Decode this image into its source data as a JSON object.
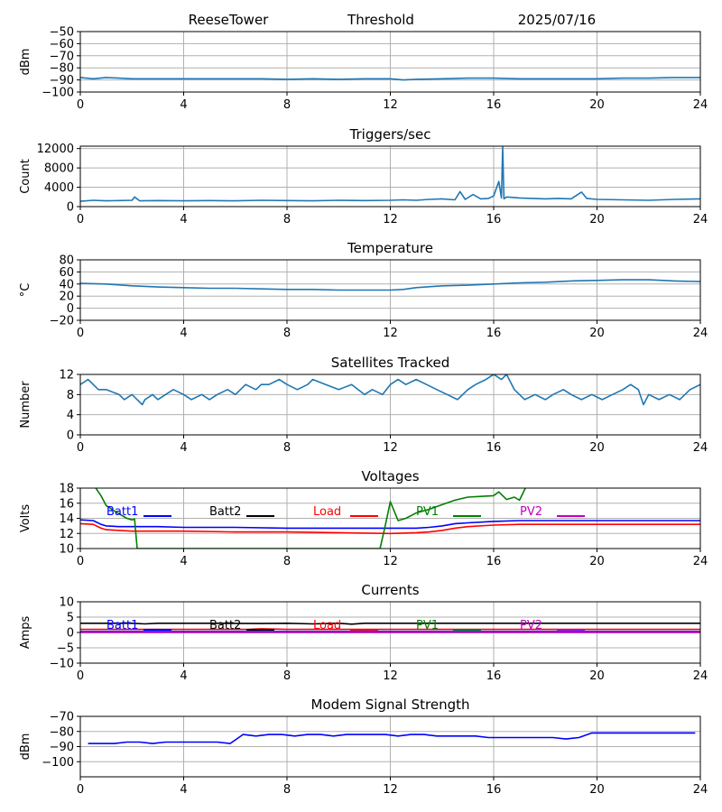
{
  "header": {
    "station": "ReeseTower",
    "mode": "Threshold",
    "date": "2025/07/16"
  },
  "colors": {
    "series_default": "#1f77b4",
    "batt1": "#0000ff",
    "batt2": "#000000",
    "load": "#ff0000",
    "pv1": "#008000",
    "pv2": "#bf00bf",
    "grid": "#b0b0b0"
  },
  "chart_data": [
    {
      "id": "signal",
      "type": "line",
      "title": "",
      "xlabel": "",
      "ylabel": "dBm",
      "xlim": [
        0,
        24
      ],
      "ylim": [
        -100,
        -50
      ],
      "xticks": [
        0,
        4,
        8,
        12,
        16,
        20,
        24
      ],
      "yticks": [
        -100,
        -90,
        -80,
        -70,
        -60,
        -50
      ],
      "grid": true,
      "series": [
        {
          "name": "",
          "color": "#1f77b4",
          "x": [
            0,
            0.5,
            1,
            2,
            3,
            4,
            5,
            6,
            7,
            8,
            9,
            10,
            11,
            12,
            12.5,
            13,
            14,
            15,
            16,
            17,
            18,
            19,
            20,
            21,
            22,
            23,
            24
          ],
          "y": [
            -88,
            -89,
            -88,
            -89,
            -89,
            -89,
            -89,
            -89,
            -89,
            -89.5,
            -89,
            -89.5,
            -89,
            -89,
            -90,
            -89.5,
            -89,
            -88.5,
            -88.5,
            -89,
            -89,
            -89,
            -89,
            -88.5,
            -88.5,
            -88,
            -88
          ]
        }
      ]
    },
    {
      "id": "triggers",
      "type": "line",
      "title": "Triggers/sec",
      "xlabel": "",
      "ylabel": "Count",
      "xlim": [
        0,
        24
      ],
      "ylim": [
        0,
        12500
      ],
      "xticks": [
        0,
        4,
        8,
        12,
        16,
        20,
        24
      ],
      "yticks": [
        0,
        4000,
        8000,
        12000
      ],
      "grid": true,
      "series": [
        {
          "name": "",
          "color": "#1f77b4",
          "x": [
            0,
            0.5,
            1,
            1.5,
            2,
            2.1,
            2.3,
            3,
            4,
            5,
            6,
            7,
            8,
            9,
            10,
            11,
            12,
            12.5,
            13,
            13.5,
            14,
            14.5,
            14.7,
            14.9,
            15.2,
            15.5,
            15.8,
            16,
            16.2,
            16.3,
            16.35,
            16.4,
            16.5,
            17,
            17.5,
            18,
            18.5,
            19,
            19.4,
            19.6,
            20,
            21,
            22,
            23,
            24
          ],
          "y": [
            1100,
            1300,
            1200,
            1250,
            1300,
            2000,
            1200,
            1250,
            1200,
            1250,
            1200,
            1300,
            1250,
            1200,
            1300,
            1250,
            1300,
            1400,
            1300,
            1500,
            1600,
            1400,
            3100,
            1500,
            2500,
            1600,
            1700,
            2200,
            5200,
            1800,
            12300,
            1600,
            2000,
            1800,
            1700,
            1600,
            1700,
            1600,
            3000,
            1700,
            1500,
            1400,
            1300,
            1500,
            1600
          ]
        }
      ]
    },
    {
      "id": "temperature",
      "type": "line",
      "title": "Temperature",
      "xlabel": "",
      "ylabel": "°C",
      "xlim": [
        0,
        24
      ],
      "ylim": [
        -20,
        80
      ],
      "xticks": [
        0,
        4,
        8,
        12,
        16,
        20,
        24
      ],
      "yticks": [
        -20,
        0,
        20,
        40,
        60,
        80
      ],
      "grid": true,
      "series": [
        {
          "name": "",
          "color": "#1f77b4",
          "x": [
            0,
            1,
            2,
            3,
            4,
            5,
            6,
            7,
            8,
            9,
            10,
            11,
            12,
            12.5,
            13,
            14,
            15,
            16,
            17,
            18,
            19,
            20,
            21,
            22,
            23,
            24
          ],
          "y": [
            41,
            40,
            37,
            35,
            34,
            33,
            33,
            32,
            31,
            31,
            30,
            30,
            30,
            31,
            34,
            37,
            38,
            40,
            42,
            43,
            45,
            46,
            47,
            47,
            45,
            44
          ]
        }
      ]
    },
    {
      "id": "satellites",
      "type": "line",
      "title": "Satellites Tracked",
      "xlabel": "",
      "ylabel": "Number",
      "xlim": [
        0,
        24
      ],
      "ylim": [
        0,
        12
      ],
      "xticks": [
        0,
        4,
        8,
        12,
        16,
        20,
        24
      ],
      "yticks": [
        0,
        4,
        8,
        12
      ],
      "grid": true,
      "series": [
        {
          "name": "",
          "color": "#1f77b4",
          "x": [
            0,
            0.3,
            0.5,
            0.7,
            1,
            1.5,
            1.7,
            2,
            2.2,
            2.4,
            2.5,
            2.8,
            3,
            3.3,
            3.6,
            4,
            4.3,
            4.7,
            5,
            5.3,
            5.7,
            6,
            6.4,
            6.8,
            7,
            7.3,
            7.7,
            8,
            8.4,
            8.8,
            9,
            9.5,
            10,
            10.5,
            11,
            11.3,
            11.7,
            12,
            12.3,
            12.6,
            13,
            13.4,
            13.8,
            14.2,
            14.6,
            15,
            15.3,
            15.7,
            16,
            16.3,
            16.5,
            16.8,
            17.2,
            17.6,
            18,
            18.3,
            18.7,
            19,
            19.4,
            19.8,
            20.2,
            20.6,
            21,
            21.3,
            21.6,
            21.8,
            22,
            22.4,
            22.8,
            23.2,
            23.6,
            24
          ],
          "y": [
            10,
            11,
            10,
            9,
            9,
            8,
            7,
            8,
            7,
            6,
            7,
            8,
            7,
            8,
            9,
            8,
            7,
            8,
            7,
            8,
            9,
            8,
            10,
            9,
            10,
            10,
            11,
            10,
            9,
            10,
            11,
            10,
            9,
            10,
            8,
            9,
            8,
            10,
            11,
            10,
            11,
            10,
            9,
            8,
            7,
            9,
            10,
            11,
            12,
            11,
            12,
            9,
            7,
            8,
            7,
            8,
            9,
            8,
            7,
            8,
            7,
            8,
            9,
            10,
            9,
            6,
            8,
            7,
            8,
            7,
            9,
            10
          ]
        }
      ]
    },
    {
      "id": "voltages",
      "type": "line",
      "title": "Voltages",
      "xlabel": "",
      "ylabel": "Volts",
      "xlim": [
        0,
        24
      ],
      "ylim": [
        10,
        18
      ],
      "xticks": [
        0,
        4,
        8,
        12,
        16,
        20,
        24
      ],
      "yticks": [
        10,
        12,
        14,
        16,
        18
      ],
      "grid": true,
      "legend": "top, single row",
      "series": [
        {
          "name": "Batt1",
          "color": "#0000ff",
          "x": [
            0,
            0.5,
            0.8,
            1,
            1.5,
            2,
            3,
            4,
            6,
            8,
            10,
            12,
            13,
            13.5,
            14,
            14.5,
            15,
            16,
            17,
            18,
            20,
            22,
            24
          ],
          "y": [
            13.8,
            13.7,
            13.2,
            13.0,
            12.9,
            12.9,
            12.9,
            12.8,
            12.8,
            12.7,
            12.7,
            12.7,
            12.7,
            12.8,
            13.0,
            13.3,
            13.4,
            13.6,
            13.7,
            13.7,
            13.7,
            13.7,
            13.7
          ]
        },
        {
          "name": "Batt2",
          "color": "#000000",
          "x": [],
          "y": []
        },
        {
          "name": "Load",
          "color": "#ff0000",
          "x": [
            0,
            0.5,
            0.8,
            1,
            1.5,
            2,
            3,
            4,
            6,
            8,
            10,
            12,
            13,
            13.5,
            14,
            14.5,
            15,
            16,
            17,
            18,
            20,
            22,
            24
          ],
          "y": [
            13.3,
            13.2,
            12.7,
            12.5,
            12.4,
            12.3,
            12.3,
            12.3,
            12.2,
            12.2,
            12.1,
            12.0,
            12.1,
            12.2,
            12.4,
            12.7,
            12.9,
            13.1,
            13.2,
            13.2,
            13.2,
            13.2,
            13.2
          ]
        },
        {
          "name": "PV1",
          "color": "#008000",
          "x": [
            0.5,
            0.8,
            1.0,
            1.4,
            1.8,
            2.0,
            2.1,
            2.2,
            11.6,
            11.8,
            12.0,
            12.3,
            12.6,
            13.0,
            13.5,
            14.0,
            14.5,
            15.0,
            15.5,
            16.0,
            16.2,
            16.5,
            16.8,
            17.0,
            17.3
          ],
          "y": [
            18.5,
            17.0,
            15.7,
            14.8,
            14.0,
            13.8,
            13.9,
            10.0,
            10.0,
            13.0,
            16.2,
            13.7,
            14.0,
            14.7,
            15.2,
            15.8,
            16.4,
            16.8,
            16.9,
            17.0,
            17.5,
            16.5,
            16.8,
            16.4,
            18.5
          ]
        },
        {
          "name": "PV2",
          "color": "#bf00bf",
          "x": [],
          "y": []
        }
      ]
    },
    {
      "id": "currents",
      "type": "line",
      "title": "Currents",
      "xlabel": "",
      "ylabel": "Amps",
      "xlim": [
        0,
        24
      ],
      "ylim": [
        -10,
        10
      ],
      "xticks": [
        0,
        4,
        8,
        12,
        16,
        20,
        24
      ],
      "yticks": [
        -10,
        -5,
        0,
        5,
        10
      ],
      "grid": true,
      "legend": "top, single row",
      "series": [
        {
          "name": "Batt1",
          "color": "#0000ff",
          "x": [
            0,
            4,
            8,
            12,
            16,
            20,
            24
          ],
          "y": [
            0.3,
            0.3,
            0.3,
            0.3,
            0.3,
            0.3,
            0.3
          ]
        },
        {
          "name": "Batt2",
          "color": "#000000",
          "x": [
            0,
            2,
            2.5,
            3,
            5,
            7,
            8,
            9,
            10,
            10.5,
            11,
            12,
            13,
            16,
            20,
            24
          ],
          "y": [
            3.0,
            3.0,
            2.8,
            3.0,
            3.0,
            2.9,
            3.0,
            2.8,
            3.0,
            2.7,
            3.0,
            3.0,
            3.0,
            3.0,
            3.0,
            3.0
          ]
        },
        {
          "name": "Load",
          "color": "#ff0000",
          "x": [
            0,
            4,
            6.5,
            7,
            8,
            12,
            16,
            20,
            24
          ],
          "y": [
            1.0,
            1.0,
            1.0,
            1.2,
            1.0,
            1.0,
            1.0,
            1.0,
            1.0
          ]
        },
        {
          "name": "PV1",
          "color": "#008000",
          "x": [],
          "y": []
        },
        {
          "name": "PV2",
          "color": "#bf00bf",
          "x": [
            0,
            4,
            8,
            12,
            16,
            20,
            24
          ],
          "y": [
            0.0,
            0.0,
            0.0,
            0.0,
            0.0,
            0.0,
            0.0
          ]
        }
      ]
    },
    {
      "id": "modem",
      "type": "line",
      "title": "Modem Signal Strength",
      "xlabel": "",
      "ylabel": "dBm",
      "xlim": [
        0,
        24
      ],
      "ylim": [
        -110,
        -70
      ],
      "xticks": [
        0,
        4,
        8,
        12,
        16,
        20,
        24
      ],
      "yticks": [
        -100,
        -90,
        -80,
        -70
      ],
      "grid": true,
      "series": [
        {
          "name": "",
          "color": "#0000ff",
          "x": [
            0.3,
            0.8,
            1.3,
            1.8,
            2.3,
            2.8,
            3.3,
            3.8,
            4.3,
            4.8,
            5.3,
            5.8,
            6.3,
            6.8,
            7.3,
            7.8,
            8.3,
            8.8,
            9.3,
            9.8,
            10.3,
            10.8,
            11.3,
            11.8,
            12.3,
            12.8,
            13.3,
            13.8,
            14.3,
            14.8,
            15.3,
            15.8,
            16.3,
            16.8,
            17.3,
            17.8,
            18.3,
            18.8,
            19.3,
            19.8,
            20.3,
            20.8,
            21.3,
            21.8,
            22.3,
            22.8,
            23.3,
            23.8
          ],
          "y": [
            -88,
            -88,
            -88,
            -87,
            -87,
            -88,
            -87,
            -87,
            -87,
            -87,
            -87,
            -88,
            -82,
            -83,
            -82,
            -82,
            -83,
            -82,
            -82,
            -83,
            -82,
            -82,
            -82,
            -82,
            -83,
            -82,
            -82,
            -83,
            -83,
            -83,
            -83,
            -84,
            -84,
            -84,
            -84,
            -84,
            -84,
            -85,
            -84,
            -81,
            -81,
            -81,
            -81,
            -81,
            -81,
            -81,
            -81,
            -81
          ]
        }
      ]
    }
  ]
}
